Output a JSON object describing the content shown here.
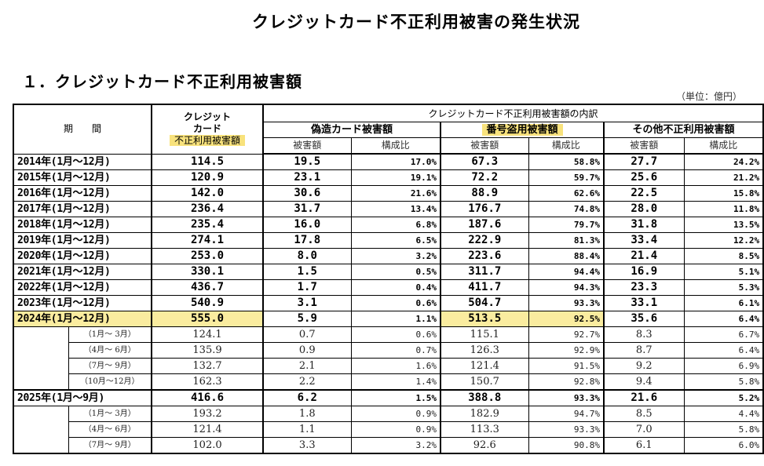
{
  "title": "クレジットカード不正利用被害の発生状況",
  "section_title": "１．クレジットカード不正利用被害額",
  "unit": "（単位：億円）",
  "header": {
    "period": "期　　間",
    "total_line1": "クレジット",
    "total_line2": "カード",
    "total_line3": "不正利用被害額",
    "breakdown": "クレジットカード不正利用被害額の内訳",
    "counterfeit": "偽造カード被害額",
    "number_theft": "番号盗用被害額",
    "other": "その他不正利用被害額",
    "amount": "被害額",
    "ratio": "構成比"
  },
  "highlight_color": "#f5dc50",
  "years": [
    {
      "period": "2014年(1月～12月)",
      "total": "114.5",
      "c_amt": "19.5",
      "c_pct": "17.0%",
      "n_amt": "67.3",
      "n_pct": "58.8%",
      "o_amt": "27.7",
      "o_pct": "24.2%"
    },
    {
      "period": "2015年(1月～12月)",
      "total": "120.9",
      "c_amt": "23.1",
      "c_pct": "19.1%",
      "n_amt": "72.2",
      "n_pct": "59.7%",
      "o_amt": "25.6",
      "o_pct": "21.2%"
    },
    {
      "period": "2016年(1月～12月)",
      "total": "142.0",
      "c_amt": "30.6",
      "c_pct": "21.6%",
      "n_amt": "88.9",
      "n_pct": "62.6%",
      "o_amt": "22.5",
      "o_pct": "15.8%"
    },
    {
      "period": "2017年(1月～12月)",
      "total": "236.4",
      "c_amt": "31.7",
      "c_pct": "13.4%",
      "n_amt": "176.7",
      "n_pct": "74.8%",
      "o_amt": "28.0",
      "o_pct": "11.8%"
    },
    {
      "period": "2018年(1月～12月)",
      "total": "235.4",
      "c_amt": "16.0",
      "c_pct": "6.8%",
      "n_amt": "187.6",
      "n_pct": "79.7%",
      "o_amt": "31.8",
      "o_pct": "13.5%"
    },
    {
      "period": "2019年(1月～12月)",
      "total": "274.1",
      "c_amt": "17.8",
      "c_pct": "6.5%",
      "n_amt": "222.9",
      "n_pct": "81.3%",
      "o_amt": "33.4",
      "o_pct": "12.2%"
    },
    {
      "period": "2020年(1月～12月)",
      "total": "253.0",
      "c_amt": "8.0",
      "c_pct": "3.2%",
      "n_amt": "223.6",
      "n_pct": "88.4%",
      "o_amt": "21.4",
      "o_pct": "8.5%"
    },
    {
      "period": "2021年(1月～12月)",
      "total": "330.1",
      "c_amt": "1.5",
      "c_pct": "0.5%",
      "n_amt": "311.7",
      "n_pct": "94.4%",
      "o_amt": "16.9",
      "o_pct": "5.1%"
    },
    {
      "period": "2022年(1月～12月)",
      "total": "436.7",
      "c_amt": "1.7",
      "c_pct": "0.4%",
      "n_amt": "411.7",
      "n_pct": "94.3%",
      "o_amt": "23.3",
      "o_pct": "5.3%"
    },
    {
      "period": "2023年(1月～12月)",
      "total": "540.9",
      "c_amt": "3.1",
      "c_pct": "0.6%",
      "n_amt": "504.7",
      "n_pct": "93.3%",
      "o_amt": "33.1",
      "o_pct": "6.1%"
    }
  ],
  "year2024": {
    "period": "2024年(1月～12月)",
    "total": "555.0",
    "c_amt": "5.9",
    "c_pct": "1.1%",
    "n_amt": "513.5",
    "n_pct": "92.5%",
    "o_amt": "35.6",
    "o_pct": "6.4%",
    "quarters": [
      {
        "period": "（1月～ 3月）",
        "total": "124.1",
        "c_amt": "0.7",
        "c_pct": "0.6%",
        "n_amt": "115.1",
        "n_pct": "92.7%",
        "o_amt": "8.3",
        "o_pct": "6.7%"
      },
      {
        "period": "（4月～ 6月）",
        "total": "135.9",
        "c_amt": "0.9",
        "c_pct": "0.7%",
        "n_amt": "126.3",
        "n_pct": "92.9%",
        "o_amt": "8.7",
        "o_pct": "6.4%"
      },
      {
        "period": "（7月～ 9月）",
        "total": "132.7",
        "c_amt": "2.1",
        "c_pct": "1.6%",
        "n_amt": "121.4",
        "n_pct": "91.5%",
        "o_amt": "9.2",
        "o_pct": "6.9%"
      },
      {
        "period": "（10月～12月）",
        "total": "162.3",
        "c_amt": "2.2",
        "c_pct": "1.4%",
        "n_amt": "150.7",
        "n_pct": "92.8%",
        "o_amt": "9.4",
        "o_pct": "5.8%"
      }
    ]
  },
  "year2025": {
    "period": "2025年(1月～9月)",
    "total": "416.6",
    "c_amt": "6.2",
    "c_pct": "1.5%",
    "n_amt": "388.8",
    "n_pct": "93.3%",
    "o_amt": "21.6",
    "o_pct": "5.2%",
    "quarters": [
      {
        "period": "（1月～ 3月）",
        "total": "193.2",
        "c_amt": "1.8",
        "c_pct": "0.9%",
        "n_amt": "182.9",
        "n_pct": "94.7%",
        "o_amt": "8.5",
        "o_pct": "4.4%"
      },
      {
        "period": "（4月～ 6月）",
        "total": "121.4",
        "c_amt": "1.1",
        "c_pct": "0.9%",
        "n_amt": "113.3",
        "n_pct": "93.3%",
        "o_amt": "7.0",
        "o_pct": "5.8%"
      },
      {
        "period": "（7月～ 9月）",
        "total": "102.0",
        "c_amt": "3.3",
        "c_pct": "3.2%",
        "n_amt": "92.6",
        "n_pct": "90.8%",
        "o_amt": "6.1",
        "o_pct": "6.0%"
      }
    ]
  }
}
